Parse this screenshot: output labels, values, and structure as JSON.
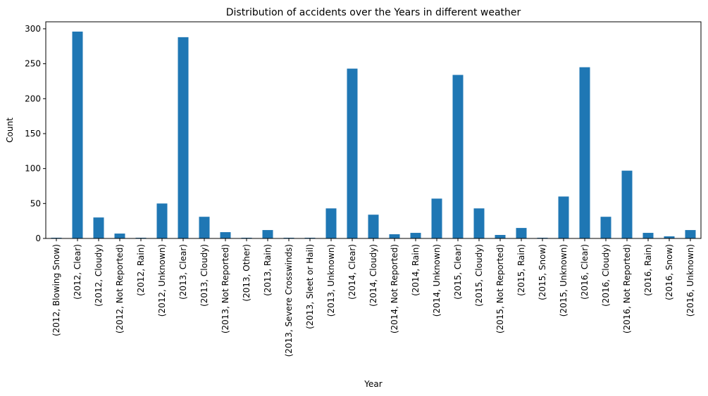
{
  "chart_data": {
    "type": "bar",
    "title": "Distribution of accidents over the Years in different weather",
    "xlabel": "Year",
    "ylabel": "Count",
    "ylim": [
      0,
      310
    ],
    "yticks": [
      0,
      50,
      100,
      150,
      200,
      250,
      300
    ],
    "grid": false,
    "color": "#1f77b4",
    "categories": [
      "(2012, Blowing Snow)",
      "(2012, Clear)",
      "(2012, Cloudy)",
      "(2012, Not Reported)",
      "(2012, Rain)",
      "(2012, Unknown)",
      "(2013, Clear)",
      "(2013, Cloudy)",
      "(2013, Not Reported)",
      "(2013, Other)",
      "(2013, Rain)",
      "(2013, Severe Crosswinds)",
      "(2013, Sleet or Hail)",
      "(2013, Unknown)",
      "(2014, Clear)",
      "(2014, Cloudy)",
      "(2014, Not Reported)",
      "(2014, Rain)",
      "(2014, Unknown)",
      "(2015, Clear)",
      "(2015, Cloudy)",
      "(2015, Not Reported)",
      "(2015, Rain)",
      "(2015, Snow)",
      "(2015, Unknown)",
      "(2016, Clear)",
      "(2016, Cloudy)",
      "(2016, Not Reported)",
      "(2016, Rain)",
      "(2016, Snow)",
      "(2016, Unknown)"
    ],
    "values": [
      1,
      296,
      30,
      7,
      1,
      50,
      288,
      31,
      9,
      1,
      12,
      1,
      1,
      43,
      243,
      34,
      6,
      8,
      57,
      234,
      43,
      5,
      15,
      1,
      60,
      245,
      31,
      97,
      8,
      3,
      12
    ]
  }
}
